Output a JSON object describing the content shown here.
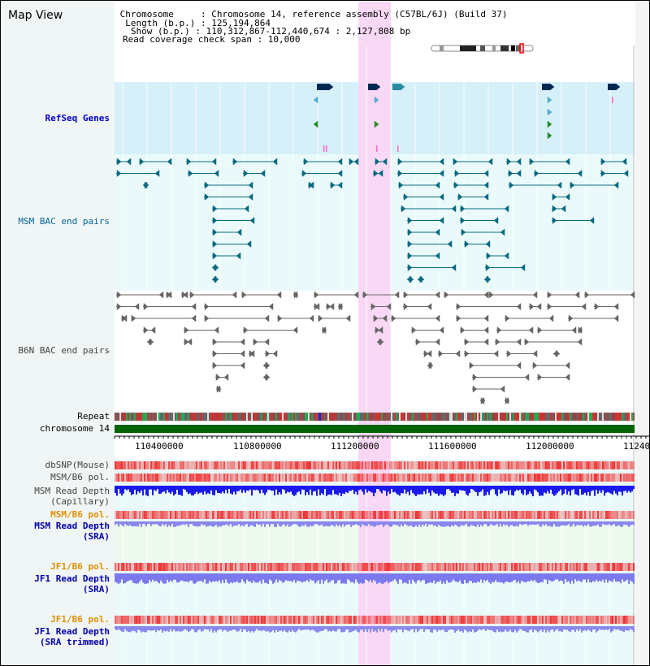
{
  "page_title": "Map View",
  "info": {
    "chromosome": " Chromosome     : Chromosome 14, reference assembly (C57BL/6J) (Build 37)",
    "length": "  Length (b.p.) : 125,194,864",
    "show": "   Show (b.p.) : 110,312,867-112,440,674 : 2,127,808 bp",
    "span": "Read coverage check span : 10,000"
  },
  "tracks": {
    "refseq": "RefSeq Genes",
    "msm_bac": "MSM BAC end pairs",
    "b6n_bac": "B6N BAC end pairs",
    "repeat": "Repeat",
    "chromosome": "chromosome 14",
    "dbsnp": "dbSNP(Mouse)",
    "msm_b6_pol_1": "MSM/B6 pol.",
    "msm_read_depth_cap_1": "MSM Read Depth",
    "msm_read_depth_cap_2": "(Capillary)",
    "msm_b6_pol_2": "MSM/B6 pol.",
    "msm_read_depth_sra_1": "MSM Read Depth",
    "msm_read_depth_sra_2": "(SRA)",
    "jf1_b6_pol_1": "JF1/B6 pol.",
    "jf1_read_depth_sra_1": "JF1 Read Depth",
    "jf1_read_depth_sra_2": "(SRA)",
    "jf1_b6_pol_2": "JF1/B6 pol.",
    "jf1_read_depth_trim_1": "JF1 Read Depth",
    "jf1_read_depth_trim_2": "(SRA trimmed)"
  },
  "axis_ticks": [
    "110400000",
    "110800000",
    "111200000",
    "111600000",
    "112000000",
    "11240"
  ],
  "colors": {
    "refseq_bg": "#d6f0fa",
    "lower_bg": "#eafafa",
    "highlight": "#f8d8f4",
    "gene_dark": "#002850",
    "gene_teal": "#2a8aa0",
    "gene_green": "#2a8a2a",
    "bac_msm": "#0a6a80",
    "bac_b6n": "#666666",
    "chrom_green": "#006400",
    "snp_red": "#ee3333",
    "depth_blue": "#1a1aee",
    "depth_lightblue": "#7a7aee"
  }
}
